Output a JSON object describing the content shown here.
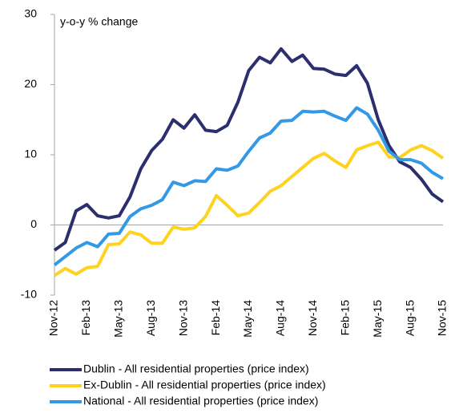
{
  "chart_data": {
    "type": "line",
    "y_axis_label": "y-o-y % change",
    "categories": [
      "Nov-12",
      null,
      null,
      "Feb-13",
      null,
      null,
      "May-13",
      null,
      null,
      "Aug-13",
      null,
      null,
      "Nov-13",
      null,
      null,
      "Feb-14",
      null,
      null,
      "May-14",
      null,
      null,
      "Aug-14",
      null,
      null,
      "Nov-14",
      null,
      null,
      "Feb-15",
      null,
      null,
      "May-15",
      null,
      null,
      "Aug-15",
      null,
      null,
      "Nov-15"
    ],
    "series": [
      {
        "name": "Dublin - All residential properties (price index)",
        "color": "#2b2f6e",
        "values": [
          -3.6,
          -2.5,
          2.0,
          2.9,
          1.3,
          1.0,
          1.3,
          4.0,
          8.0,
          10.6,
          12.2,
          15.0,
          13.8,
          15.7,
          13.5,
          13.3,
          14.2,
          17.5,
          22.0,
          23.9,
          23.1,
          25.1,
          23.3,
          24.2,
          22.3,
          22.2,
          21.5,
          21.3,
          22.7,
          20.2,
          15.0,
          11.3,
          9.0,
          8.2,
          6.5,
          4.4,
          3.3
        ]
      },
      {
        "name": "Ex-Dublin - All residential properties (price index)",
        "color": "#ffd21f",
        "values": [
          -7.2,
          -6.2,
          -7.0,
          -6.1,
          -5.9,
          -2.8,
          -2.7,
          -1.0,
          -1.4,
          -2.6,
          -2.6,
          -0.3,
          -0.6,
          -0.4,
          1.2,
          4.2,
          2.8,
          1.3,
          1.7,
          3.2,
          4.8,
          5.6,
          6.9,
          8.2,
          9.5,
          10.2,
          9.1,
          8.2,
          10.7,
          11.3,
          11.8,
          9.7,
          9.6,
          10.7,
          11.3,
          10.6,
          9.5
        ]
      },
      {
        "name": "National - All residential properties (price index)",
        "color": "#3399e6",
        "values": [
          -5.7,
          -4.5,
          -3.3,
          -2.5,
          -3.1,
          -1.3,
          -1.2,
          1.2,
          2.3,
          2.8,
          3.6,
          6.1,
          5.6,
          6.3,
          6.2,
          8.0,
          7.8,
          8.4,
          10.5,
          12.4,
          13.1,
          14.8,
          14.9,
          16.2,
          16.1,
          16.2,
          15.5,
          14.9,
          16.7,
          15.8,
          13.5,
          10.5,
          9.3,
          9.3,
          8.8,
          7.5,
          6.6
        ]
      }
    ],
    "ylim": [
      -10,
      30
    ],
    "yticks": [
      -10,
      0,
      10,
      20,
      30
    ]
  }
}
